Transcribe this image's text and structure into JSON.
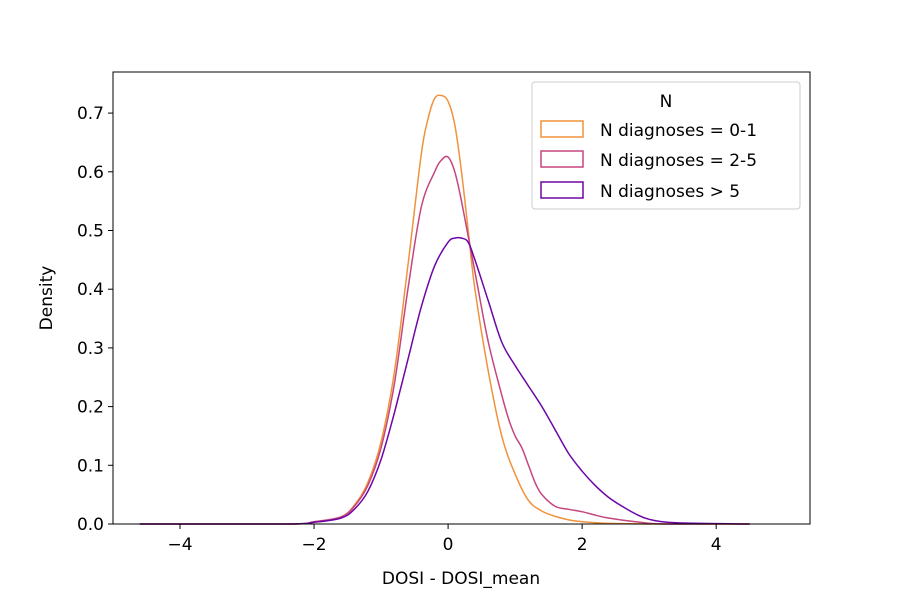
{
  "chart_data": {
    "type": "line",
    "title": "",
    "xlabel": "DOSI - DOSI_mean",
    "ylabel": "Density",
    "xlim": [
      -5.0,
      5.4
    ],
    "ylim": [
      0,
      0.77
    ],
    "xticks": [
      -4,
      -2,
      0,
      2,
      4
    ],
    "xtick_labels": [
      "−4",
      "−2",
      "0",
      "2",
      "4"
    ],
    "yticks": [
      0.0,
      0.1,
      0.2,
      0.3,
      0.4,
      0.5,
      0.6,
      0.7
    ],
    "ytick_labels": [
      "0.0",
      "0.1",
      "0.2",
      "0.3",
      "0.4",
      "0.5",
      "0.6",
      "0.7"
    ],
    "grid": false,
    "legend": {
      "title": "N",
      "position": "top-right"
    },
    "series": [
      {
        "name": "N diagnoses = 0-1",
        "color": "#f0923c",
        "x": [
          -4.6,
          -2.4,
          -2.0,
          -1.6,
          -1.4,
          -1.2,
          -1.0,
          -0.8,
          -0.6,
          -0.4,
          -0.3,
          -0.2,
          -0.1,
          0.0,
          0.1,
          0.2,
          0.3,
          0.4,
          0.6,
          0.8,
          1.0,
          1.2,
          1.4,
          1.6,
          1.8,
          2.0,
          2.4,
          3.0,
          4.5
        ],
        "y": [
          0.0,
          0.0,
          0.003,
          0.012,
          0.032,
          0.07,
          0.14,
          0.26,
          0.44,
          0.63,
          0.69,
          0.725,
          0.73,
          0.72,
          0.68,
          0.6,
          0.5,
          0.4,
          0.26,
          0.15,
          0.085,
          0.04,
          0.022,
          0.013,
          0.007,
          0.004,
          0.001,
          0.0,
          0.0
        ]
      },
      {
        "name": "N diagnoses = 2-5",
        "color": "#c4467d",
        "x": [
          -4.6,
          -2.4,
          -2.0,
          -1.6,
          -1.4,
          -1.2,
          -1.0,
          -0.8,
          -0.6,
          -0.4,
          -0.2,
          -0.1,
          0.0,
          0.1,
          0.2,
          0.4,
          0.6,
          0.8,
          0.9,
          1.0,
          1.1,
          1.2,
          1.3,
          1.4,
          1.6,
          1.8,
          2.0,
          2.2,
          2.4,
          2.8,
          3.2,
          4.5
        ],
        "y": [
          0.0,
          0.0,
          0.004,
          0.012,
          0.03,
          0.065,
          0.13,
          0.24,
          0.4,
          0.54,
          0.6,
          0.62,
          0.625,
          0.6,
          0.55,
          0.43,
          0.31,
          0.22,
          0.18,
          0.15,
          0.13,
          0.1,
          0.07,
          0.05,
          0.03,
          0.025,
          0.021,
          0.015,
          0.01,
          0.004,
          0.0,
          0.0
        ]
      },
      {
        "name": "N diagnoses > 5",
        "color": "#6e06a6",
        "x": [
          -4.6,
          -2.4,
          -2.0,
          -1.6,
          -1.4,
          -1.2,
          -1.0,
          -0.8,
          -0.6,
          -0.4,
          -0.2,
          0.0,
          0.1,
          0.2,
          0.3,
          0.4,
          0.6,
          0.8,
          1.0,
          1.2,
          1.4,
          1.6,
          1.8,
          2.0,
          2.2,
          2.4,
          2.6,
          2.8,
          3.0,
          3.4,
          4.5
        ],
        "y": [
          0.0,
          0.0,
          0.003,
          0.01,
          0.025,
          0.055,
          0.11,
          0.19,
          0.28,
          0.37,
          0.44,
          0.48,
          0.487,
          0.487,
          0.48,
          0.45,
          0.38,
          0.31,
          0.27,
          0.235,
          0.2,
          0.16,
          0.12,
          0.09,
          0.065,
          0.045,
          0.03,
          0.017,
          0.008,
          0.002,
          0.0
        ]
      }
    ]
  }
}
